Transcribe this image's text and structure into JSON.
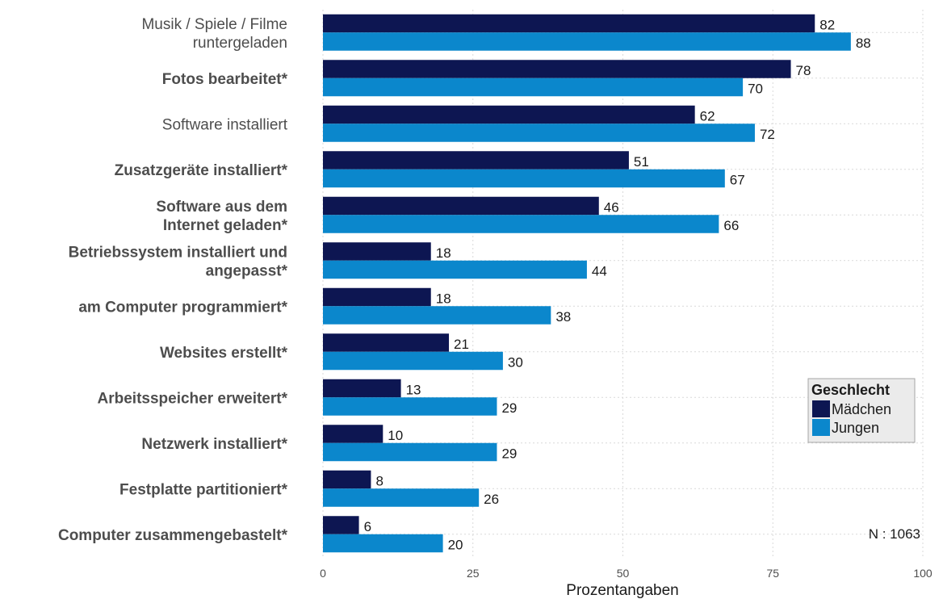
{
  "chart_data": {
    "type": "bar",
    "orientation": "horizontal",
    "categories": [
      {
        "label": "Musik / Spiele / Filme\nruntergeladen",
        "bold": false
      },
      {
        "label": "Fotos bearbeitet*",
        "bold": true
      },
      {
        "label": "Software installiert",
        "bold": false
      },
      {
        "label": "Zusatzgeräte installiert*",
        "bold": true
      },
      {
        "label": "Software aus dem\nInternet geladen*",
        "bold": true
      },
      {
        "label": "Betriebssystem installiert und\nangepasst*",
        "bold": true
      },
      {
        "label": "am Computer programmiert*",
        "bold": true
      },
      {
        "label": "Websites erstellt*",
        "bold": true
      },
      {
        "label": "Arbeitsspeicher erweitert*",
        "bold": true
      },
      {
        "label": "Netzwerk installiert*",
        "bold": true
      },
      {
        "label": "Festplatte partitioniert*",
        "bold": true
      },
      {
        "label": "Computer zusammengebastelt*",
        "bold": true
      }
    ],
    "series": [
      {
        "name": "Mädchen",
        "color": "#0d1652",
        "values": [
          82,
          78,
          62,
          51,
          46,
          18,
          18,
          21,
          13,
          10,
          8,
          6
        ]
      },
      {
        "name": "Jungen",
        "color": "#0b87cc",
        "values": [
          88,
          70,
          72,
          67,
          66,
          44,
          38,
          30,
          29,
          29,
          26,
          20
        ]
      }
    ],
    "xlabel": "Prozentangaben",
    "xlim": [
      0,
      100
    ],
    "xticks": [
      0,
      25,
      50,
      75,
      100
    ],
    "grid": true,
    "legend": {
      "title": "Geschlecht",
      "position": "right"
    },
    "note": "N : 1063"
  }
}
